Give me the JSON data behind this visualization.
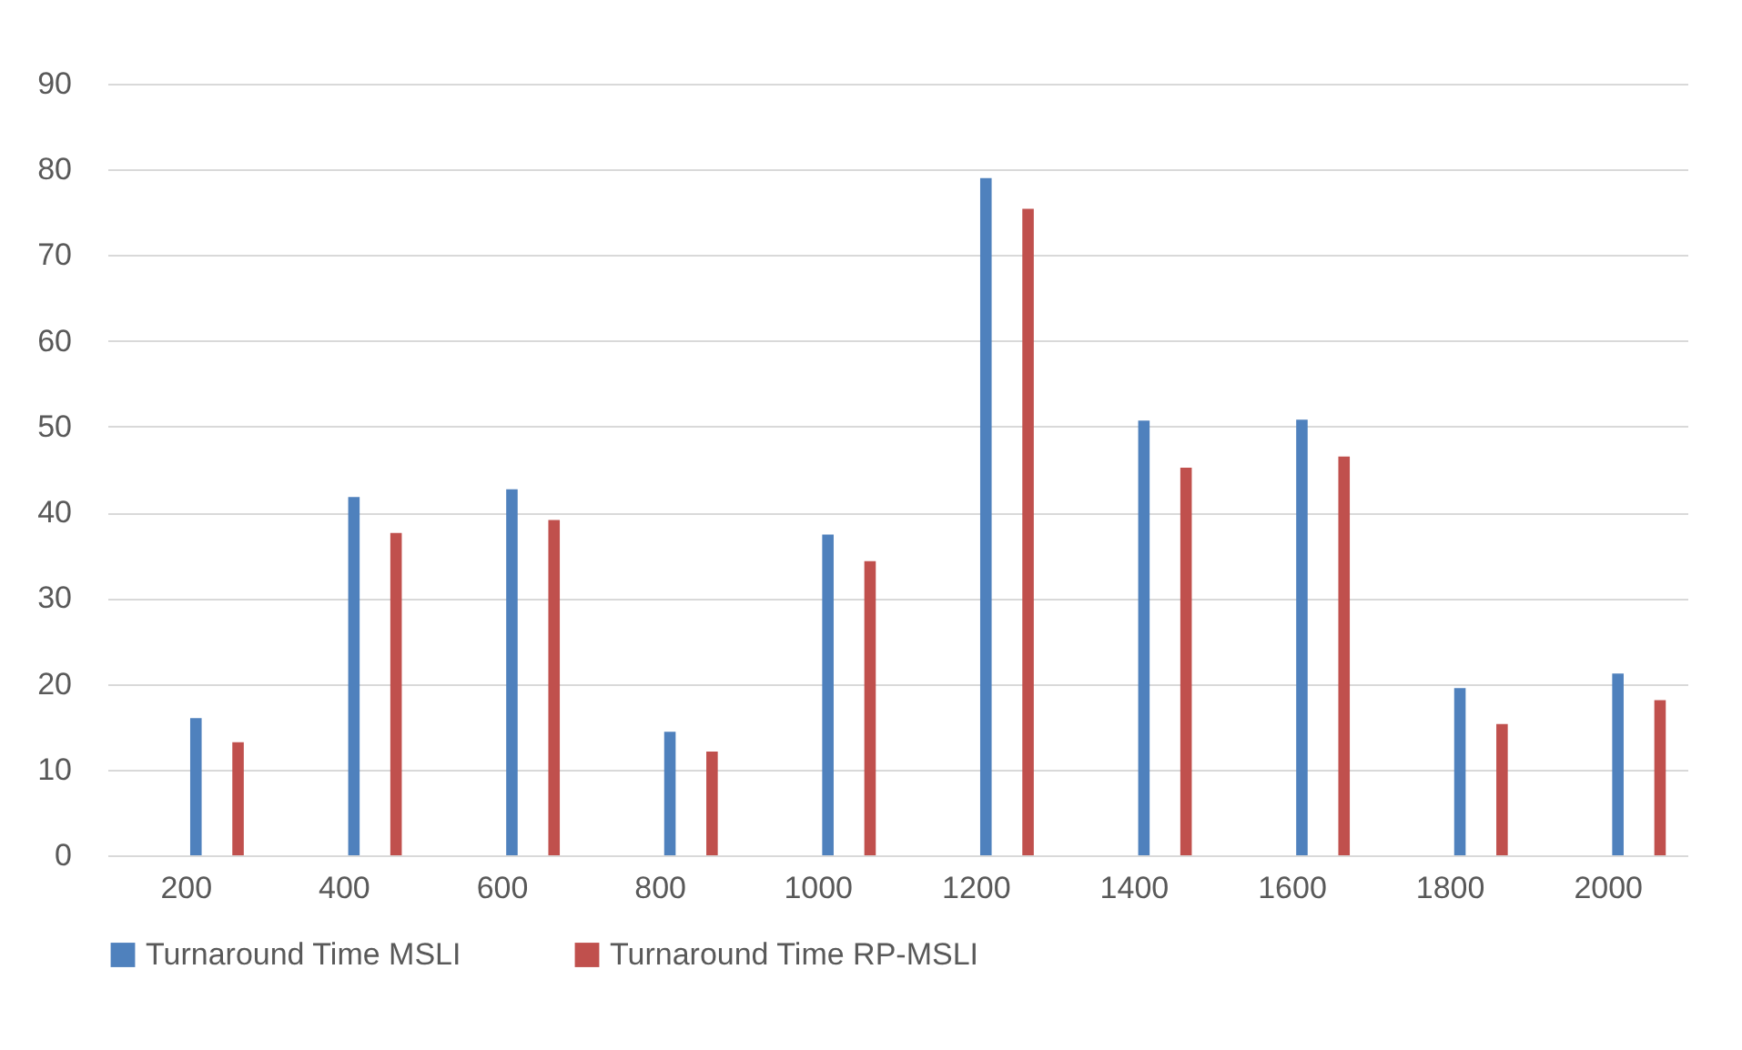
{
  "chart_data": {
    "type": "bar",
    "categories": [
      "200",
      "400",
      "600",
      "800",
      "1000",
      "1200",
      "1400",
      "1600",
      "1800",
      "2000"
    ],
    "series": [
      {
        "name": "Turnaround Time MSLI",
        "color": "#4f81bd",
        "values": [
          16,
          41.8,
          42.7,
          14.4,
          37.4,
          79,
          50.7,
          50.8,
          19.5,
          21.2
        ]
      },
      {
        "name": "Turnaround Time RP-MSLI",
        "color": "#c0504d",
        "values": [
          13.2,
          37.6,
          39.1,
          12.1,
          34.3,
          75.4,
          45.2,
          46.5,
          15.3,
          18.1
        ]
      }
    ],
    "ylim": [
      0,
      90
    ],
    "yticks": [
      0,
      10,
      20,
      30,
      40,
      50,
      60,
      70,
      80,
      90
    ],
    "grid": "y",
    "legend": "bottom"
  }
}
